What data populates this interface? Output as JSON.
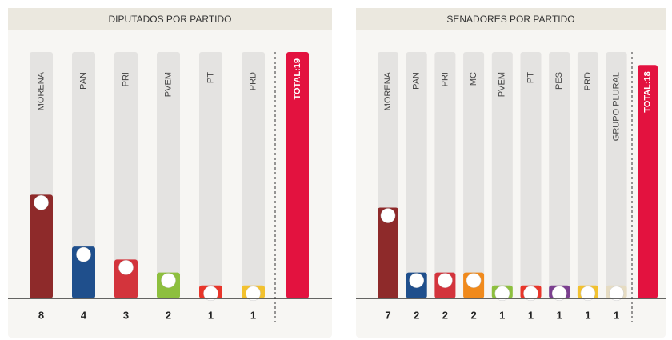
{
  "chart_data": [
    {
      "type": "bar",
      "title": "DIPUTADOS POR PARTIDO",
      "categories": [
        "MORENA",
        "PAN",
        "PRI",
        "PVEM",
        "PT",
        "PRD"
      ],
      "values": [
        8,
        4,
        3,
        2,
        1,
        1
      ],
      "colors": [
        "#8e2a2a",
        "#1f4f8c",
        "#d3343c",
        "#8dbf3e",
        "#e8352a",
        "#f2c12e"
      ],
      "total": {
        "value": 19,
        "label": "TOTAL:19"
      },
      "total_color": "#e3123f",
      "ylim": [
        0,
        19
      ]
    },
    {
      "type": "bar",
      "title": "SENADORES POR PARTIDO",
      "categories": [
        "MORENA",
        "PAN",
        "PRI",
        "MC",
        "PVEM",
        "PT",
        "PES",
        "PRD",
        "GRUPO PLURAL"
      ],
      "values": [
        7,
        2,
        2,
        2,
        1,
        1,
        1,
        1,
        1
      ],
      "colors": [
        "#8e2a2a",
        "#1f4f8c",
        "#d3343c",
        "#f08a1c",
        "#8dbf3e",
        "#e8352a",
        "#7b3f8f",
        "#f2c12e",
        "#e6dcc2"
      ],
      "total": {
        "value": 18,
        "label": "TOTAL:18"
      },
      "total_color": "#e3123f",
      "ylim": [
        0,
        19
      ]
    }
  ]
}
